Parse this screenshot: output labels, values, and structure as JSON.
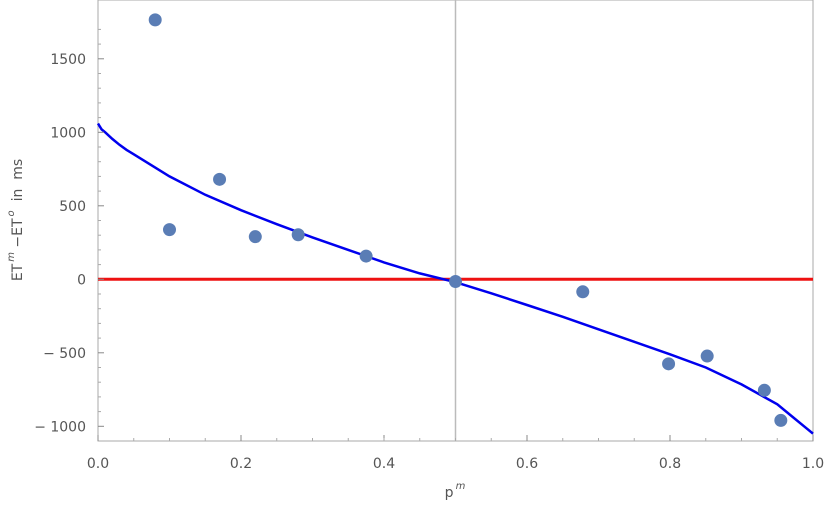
{
  "chart_data": {
    "type": "scatter",
    "xlabel": "p",
    "xlabel_sup": "m",
    "ylabel_parts": [
      "ET",
      "m",
      " −ET",
      "o",
      "  in  ms"
    ],
    "xlim": [
      0.0,
      1.0
    ],
    "ylim": [
      -1100,
      1900
    ],
    "x_ticks": [
      0.0,
      0.2,
      0.4,
      0.6,
      0.8,
      1.0
    ],
    "x_tick_labels": [
      "0.0",
      "0.2",
      "0.4",
      "0.6",
      "0.8",
      "1.0"
    ],
    "y_ticks": [
      -1000,
      -500,
      0,
      500,
      1000,
      1500
    ],
    "y_tick_labels": [
      "− 1000",
      "− 500",
      "0",
      "500",
      "1000",
      "1500"
    ],
    "grid": false,
    "points": [
      {
        "x": 0.08,
        "y": 1765
      },
      {
        "x": 0.1,
        "y": 338
      },
      {
        "x": 0.17,
        "y": 680
      },
      {
        "x": 0.22,
        "y": 290
      },
      {
        "x": 0.28,
        "y": 303
      },
      {
        "x": 0.375,
        "y": 158
      },
      {
        "x": 0.5,
        "y": -15
      },
      {
        "x": 0.678,
        "y": -85
      },
      {
        "x": 0.798,
        "y": -575
      },
      {
        "x": 0.852,
        "y": -522
      },
      {
        "x": 0.932,
        "y": -755
      },
      {
        "x": 0.955,
        "y": -960
      }
    ],
    "fit_curve": {
      "x": [
        0.0,
        0.005,
        0.01,
        0.02,
        0.03,
        0.04,
        0.05,
        0.08,
        0.1,
        0.15,
        0.2,
        0.25,
        0.3,
        0.35,
        0.4,
        0.45,
        0.5,
        0.55,
        0.6,
        0.65,
        0.7,
        0.75,
        0.8,
        0.85,
        0.9,
        0.95,
        0.97,
        0.99,
        1.0
      ],
      "y": [
        1060,
        1020,
        1000,
        955,
        915,
        880,
        850,
        760,
        700,
        575,
        470,
        375,
        285,
        200,
        115,
        40,
        -20,
        -95,
        -175,
        -255,
        -340,
        -425,
        -510,
        -600,
        -715,
        -850,
        -930,
        -1010,
        -1050
      ],
      "color": "#0000ee"
    },
    "reference_lines": [
      {
        "orientation": "horizontal",
        "value": 0,
        "color": "#ee1111"
      },
      {
        "orientation": "vertical",
        "value": 0.5,
        "color": "#bbbbbb"
      }
    ],
    "point_color": "#5a7db5"
  }
}
